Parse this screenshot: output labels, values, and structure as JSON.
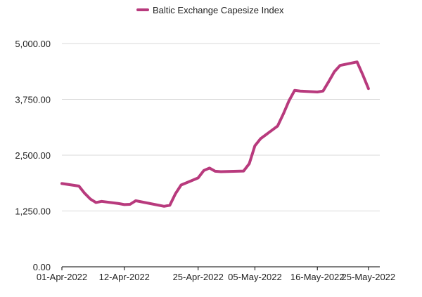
{
  "chart_data": {
    "type": "line",
    "title": "",
    "xlabel": "",
    "ylabel": "",
    "legend": {
      "position": "top-center",
      "label": "Baltic Exchange Capesize Index"
    },
    "grid": {
      "horizontal": true,
      "vertical": false
    },
    "ylim": [
      0,
      5000
    ],
    "y_ticks": [
      {
        "value": 0,
        "label": "0.00"
      },
      {
        "value": 1250,
        "label": "1,250.00"
      },
      {
        "value": 2500,
        "label": "2,500.00"
      },
      {
        "value": 3750,
        "label": "3,750.00"
      },
      {
        "value": 5000,
        "label": "5,000.00"
      }
    ],
    "x_ticks": [
      {
        "date": "2022-04-01",
        "label": "01-Apr-2022"
      },
      {
        "date": "2022-04-12",
        "label": "12-Apr-2022"
      },
      {
        "date": "2022-04-25",
        "label": "25-Apr-2022"
      },
      {
        "date": "2022-05-05",
        "label": "05-May-2022"
      },
      {
        "date": "2022-05-16",
        "label": "16-May-2022"
      },
      {
        "date": "2022-05-25",
        "label": "25-May-2022"
      }
    ],
    "xlim": [
      "2022-04-01",
      "2022-05-27"
    ],
    "series": [
      {
        "name": "Baltic Exchange Capesize Index",
        "color": "#b83a7d",
        "points": [
          {
            "x": "2022-04-01",
            "y": 1865
          },
          {
            "x": "2022-04-04",
            "y": 1808
          },
          {
            "x": "2022-04-05",
            "y": 1648
          },
          {
            "x": "2022-04-06",
            "y": 1519
          },
          {
            "x": "2022-04-07",
            "y": 1440
          },
          {
            "x": "2022-04-08",
            "y": 1465
          },
          {
            "x": "2022-04-11",
            "y": 1417
          },
          {
            "x": "2022-04-12",
            "y": 1393
          },
          {
            "x": "2022-04-13",
            "y": 1400
          },
          {
            "x": "2022-04-14",
            "y": 1480
          },
          {
            "x": "2022-04-19",
            "y": 1355
          },
          {
            "x": "2022-04-20",
            "y": 1377
          },
          {
            "x": "2022-04-21",
            "y": 1635
          },
          {
            "x": "2022-04-22",
            "y": 1832
          },
          {
            "x": "2022-04-25",
            "y": 1991
          },
          {
            "x": "2022-04-26",
            "y": 2157
          },
          {
            "x": "2022-04-27",
            "y": 2211
          },
          {
            "x": "2022-04-28",
            "y": 2140
          },
          {
            "x": "2022-04-29",
            "y": 2130
          },
          {
            "x": "2022-05-03",
            "y": 2145
          },
          {
            "x": "2022-05-04",
            "y": 2310
          },
          {
            "x": "2022-05-05",
            "y": 2710
          },
          {
            "x": "2022-05-06",
            "y": 2870
          },
          {
            "x": "2022-05-09",
            "y": 3152
          },
          {
            "x": "2022-05-10",
            "y": 3422
          },
          {
            "x": "2022-05-11",
            "y": 3719
          },
          {
            "x": "2022-05-12",
            "y": 3950
          },
          {
            "x": "2022-05-13",
            "y": 3935
          },
          {
            "x": "2022-05-16",
            "y": 3915
          },
          {
            "x": "2022-05-17",
            "y": 3935
          },
          {
            "x": "2022-05-18",
            "y": 4150
          },
          {
            "x": "2022-05-19",
            "y": 4370
          },
          {
            "x": "2022-05-20",
            "y": 4510
          },
          {
            "x": "2022-05-23",
            "y": 4588
          },
          {
            "x": "2022-05-24",
            "y": 4300
          },
          {
            "x": "2022-05-25",
            "y": 3990
          }
        ]
      }
    ]
  }
}
